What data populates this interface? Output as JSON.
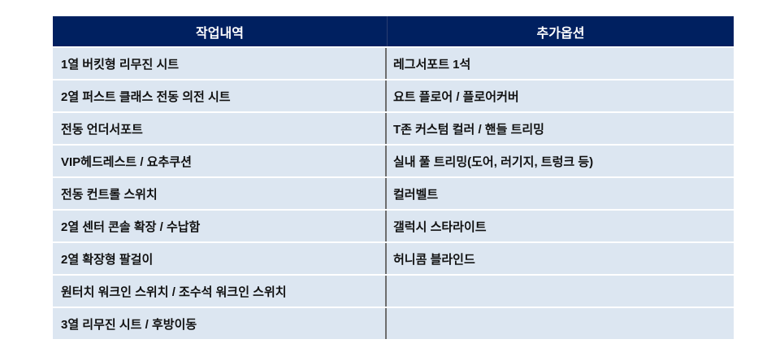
{
  "header": {
    "work": "작업내역",
    "options": "추가옵션"
  },
  "rows": [
    {
      "work": "1열 버킷형 리무진 시트",
      "option": "레그서포트 1석"
    },
    {
      "work": "2열 퍼스트 클래스 전동 의전 시트",
      "option": "요트 플로어 / 플로어커버"
    },
    {
      "work": "전동 언더서포트",
      "option": "T존 커스텀 컬러 / 핸들 트리밍"
    },
    {
      "work": "VIP헤드레스트 / 요추쿠션",
      "option": "실내 풀 트리밍(도어, 러기지, 트렁크 등)"
    },
    {
      "work": "전동 컨트롤 스위치",
      "option": "컬러벨트"
    },
    {
      "work": "2열 센터 콘솔 확장 / 수납함",
      "option": "갤럭시 스타라이트"
    },
    {
      "work": "2열 확장형 팔걸이",
      "option": "허니콤 블라인드"
    },
    {
      "work": "원터치 워크인 스위치 / 조수석 워크인 스위치",
      "option": ""
    },
    {
      "work": "3열 리무진 시트 / 후방이동",
      "option": ""
    }
  ],
  "colors": {
    "header_bg": "#002060",
    "row_bg": "#dce6f1"
  }
}
